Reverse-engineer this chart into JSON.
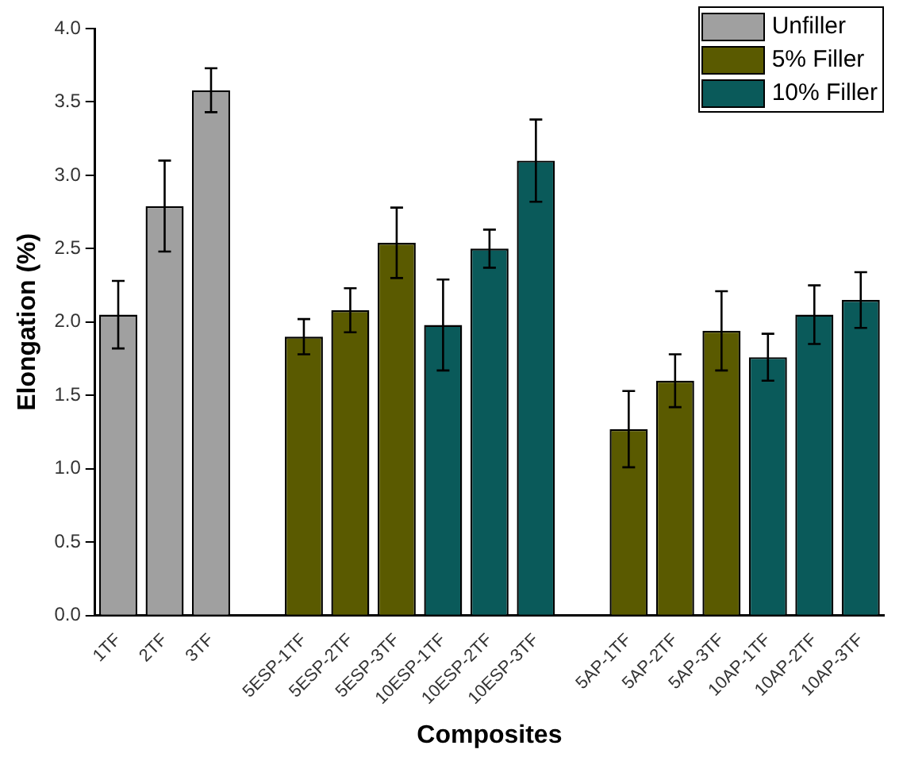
{
  "chart_data": {
    "type": "bar",
    "xlabel": "Composites",
    "ylabel": "Elongation (%)",
    "categories": [
      "1TF",
      "2TF",
      "3TF",
      null,
      "5ESP-1TF",
      "5ESP-2TF",
      "5ESP-3TF",
      "10ESP-1TF",
      "10ESP-2TF",
      "10ESP-3TF",
      null,
      "5AP-1TF",
      "5AP-2TF",
      "5AP-3TF",
      "10AP-1TF",
      "10AP-2TF",
      "10AP-3TF"
    ],
    "series": [
      {
        "name": "Unfiller",
        "color": "#a0a0a0",
        "values": [
          2.05,
          2.79,
          3.58,
          null,
          null,
          null,
          null,
          null,
          null,
          null,
          null,
          null,
          null,
          null,
          null,
          null,
          null
        ],
        "errors": [
          0.23,
          0.31,
          0.15,
          null,
          null,
          null,
          null,
          null,
          null,
          null,
          null,
          null,
          null,
          null,
          null,
          null,
          null
        ]
      },
      {
        "name": "5% Filler",
        "color": "#5a5a00",
        "values": [
          null,
          null,
          null,
          null,
          1.9,
          2.08,
          2.54,
          null,
          null,
          null,
          null,
          1.27,
          1.6,
          1.94,
          null,
          null,
          null
        ],
        "errors": [
          null,
          null,
          null,
          null,
          0.12,
          0.15,
          0.24,
          null,
          null,
          null,
          null,
          0.26,
          0.18,
          0.27,
          null,
          null,
          null
        ]
      },
      {
        "name": "10% Filler",
        "color": "#0a5a5a",
        "values": [
          null,
          null,
          null,
          null,
          null,
          null,
          null,
          1.98,
          2.5,
          3.1,
          null,
          null,
          null,
          null,
          1.76,
          2.05,
          2.15
        ],
        "errors": [
          null,
          null,
          null,
          null,
          null,
          null,
          null,
          0.31,
          0.13,
          0.28,
          null,
          null,
          null,
          null,
          0.16,
          0.2,
          0.19
        ]
      }
    ],
    "ylim": [
      0,
      4
    ],
    "yticks": [
      {
        "value": 0,
        "label": "0.0"
      },
      {
        "value": 0.5,
        "label": "0.5"
      },
      {
        "value": 1,
        "label": "1.0"
      },
      {
        "value": 1.5,
        "label": "1.5"
      },
      {
        "value": 2,
        "label": "2.0"
      },
      {
        "value": 2.5,
        "label": "2.5"
      },
      {
        "value": 3,
        "label": "3.0"
      },
      {
        "value": 3.5,
        "label": "3.5"
      },
      {
        "value": 4,
        "label": "4.0"
      }
    ],
    "grid": false,
    "legend": "top right"
  }
}
